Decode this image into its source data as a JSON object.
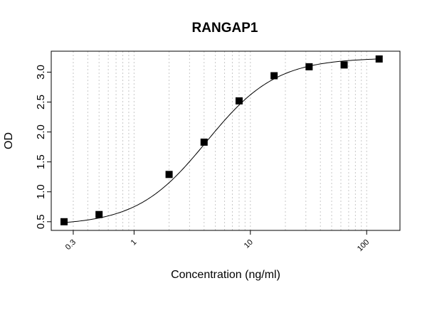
{
  "chart_data": {
    "type": "scatter",
    "title": "RANGAP1",
    "xlabel": "Concentration (ng/ml)",
    "ylabel": "OD",
    "x_scale": "log",
    "xlim": [
      0.25,
      150
    ],
    "ylim": [
      0.45,
      3.35
    ],
    "x_ticks": [
      0.3,
      1,
      10,
      100
    ],
    "x_tick_labels": [
      "0.3",
      "1",
      "10",
      "100"
    ],
    "y_ticks": [
      0.5,
      1.0,
      1.5,
      2.0,
      2.5,
      3.0
    ],
    "y_tick_labels": [
      "0.5",
      "1.0",
      "1.5",
      "2.0",
      "2.5",
      "3.0"
    ],
    "grid": "vertical-dotted",
    "series": [
      {
        "points": [
          {
            "x": 0.25,
            "y": 0.5
          },
          {
            "x": 0.5,
            "y": 0.62
          },
          {
            "x": 2,
            "y": 1.29
          },
          {
            "x": 4,
            "y": 1.83
          },
          {
            "x": 8,
            "y": 2.52
          },
          {
            "x": 16,
            "y": 2.94
          },
          {
            "x": 32,
            "y": 3.09
          },
          {
            "x": 64,
            "y": 3.12
          },
          {
            "x": 128,
            "y": 3.22
          }
        ],
        "marker": "square",
        "color": "#000000",
        "fit_curve": "4PL"
      }
    ]
  }
}
